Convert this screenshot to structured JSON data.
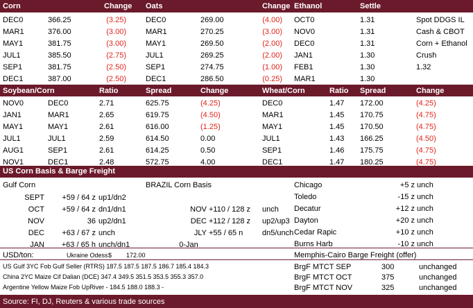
{
  "futures": {
    "headers": {
      "corn": "Corn",
      "change1": "Change",
      "oats": "Oats",
      "change2": "Change",
      "ethanol": "Ethanol",
      "settle": "Settle"
    },
    "rows": [
      {
        "cm": "DEC0",
        "cp": "366.25",
        "cc": "(3.25)",
        "cneg": true,
        "om": "DEC0",
        "op": "269.00",
        "oc": "(4.00)",
        "oneg": true,
        "em": "OCT0",
        "ep": "1.31",
        "x1": "Spot DDGS IL",
        "x2": ""
      },
      {
        "cm": "MAR1",
        "cp": "376.00",
        "cc": "(3.00)",
        "cneg": true,
        "om": "MAR1",
        "op": "270.25",
        "oc": "(3.00)",
        "oneg": true,
        "em": "NOV0",
        "ep": "1.31",
        "x1": "Cash & CBOT",
        "x2": ""
      },
      {
        "cm": "MAY1",
        "cp": "381.75",
        "cc": "(3.00)",
        "cneg": true,
        "om": "MAY1",
        "op": "269.50",
        "oc": "(2.00)",
        "oneg": true,
        "em": "DEC0",
        "ep": "1.31",
        "x1": "Corn + Ethanol",
        "x2": ""
      },
      {
        "cm": "JUL1",
        "cp": "385.50",
        "cc": "(2.75)",
        "cneg": true,
        "om": "JUL1",
        "op": "269.25",
        "oc": "(2.00)",
        "oneg": true,
        "em": "JAN1",
        "ep": "1.30",
        "x1": "Crush",
        "x2": ""
      },
      {
        "cm": "SEP1",
        "cp": "381.75",
        "cc": "(2.50)",
        "cneg": true,
        "om": "SEP1",
        "op": "274.75",
        "oc": "(1.00)",
        "oneg": true,
        "em": "FEB1",
        "ep": "1.30",
        "x1": "",
        "x2": "1.32"
      },
      {
        "cm": "DEC1",
        "cp": "387.00",
        "cc": "(2.50)",
        "cneg": true,
        "om": "DEC1",
        "op": "286.50",
        "oc": "(0.25)",
        "oneg": true,
        "em": "MAR1",
        "ep": "1.30",
        "x1": "",
        "x2": ""
      }
    ]
  },
  "ratios": {
    "headers": {
      "sc": "Soybean/Corn",
      "ratio1": "Ratio",
      "spread1": "Spread",
      "change1": "Change",
      "wc": "Wheat/Corn",
      "ratio2": "Ratio",
      "spread2": "Spread",
      "change2": "Change"
    },
    "rows": [
      {
        "a": "NOV0",
        "b": "DEC0",
        "r": "2.71",
        "s": "625.75",
        "c": "(4.25)",
        "cneg": true,
        "wa": "DEC0",
        "wr": "1.47",
        "ws": "172.00",
        "wch": "(4.25)"
      },
      {
        "a": "JAN1",
        "b": "MAR1",
        "r": "2.65",
        "s": "619.75",
        "c": "(4.50)",
        "cneg": true,
        "wa": "MAR1",
        "wr": "1.45",
        "ws": "170.75",
        "wch": "(4.75)"
      },
      {
        "a": "MAY1",
        "b": "MAY1",
        "r": "2.61",
        "s": "616.00",
        "c": "(1.25)",
        "cneg": true,
        "wa": "MAY1",
        "wr": "1.45",
        "ws": "170.50",
        "wch": "(4.75)"
      },
      {
        "a": "JUL1",
        "b": "JUL1",
        "r": "2.59",
        "s": "614.50",
        "c": "0.00",
        "cneg": false,
        "wa": "JUL1",
        "wr": "1.43",
        "ws": "166.25",
        "wch": "(4.50)"
      },
      {
        "a": "AUG1",
        "b": "SEP1",
        "r": "2.61",
        "s": "614.25",
        "c": "0.50",
        "cneg": false,
        "wa": "SEP1",
        "wr": "1.46",
        "ws": "175.75",
        "wch": "(4.75)"
      },
      {
        "a": "NOV1",
        "b": "DEC1",
        "r": "2.48",
        "s": "572.75",
        "c": "4.00",
        "cneg": false,
        "wa": "DEC1",
        "wr": "1.47",
        "ws": "180.25",
        "wch": "(4.75)"
      }
    ]
  },
  "basis": {
    "title": "US Corn Basis & Barge Freight",
    "gulf_label": "Gulf Corn",
    "brazil_label": "BRAZIL Corn Basis",
    "gulf": [
      {
        "m": "SEPT",
        "v": "+59 / 64 z",
        "s": "up1/dn2"
      },
      {
        "m": "OCT",
        "v": "+59 / 64 z",
        "s": "dn1/dn1"
      },
      {
        "m": "NOV",
        "v": "36",
        "s": "up2/dn1"
      },
      {
        "m": "DEC",
        "v": "+63 / 67 z",
        "s": "unch"
      },
      {
        "m": "JAN",
        "v": "+63 / 65 h",
        "s": "unch/dn1"
      }
    ],
    "brazil": [
      {
        "m": "",
        "v": "",
        "s": ""
      },
      {
        "m": "NOV",
        "v": "+110 / 128 z",
        "s": "unch"
      },
      {
        "m": "DEC",
        "v": "+112 / 128 z",
        "s": "up2/up3"
      },
      {
        "m": "JLY",
        "v": "+55 / 65 n",
        "s": "dn5/unch"
      },
      {
        "m": "0-Jan",
        "v": "",
        "s": ""
      }
    ],
    "locations": [
      {
        "n": "Chicago",
        "v": "+5 z",
        "s": "unch"
      },
      {
        "n": "Toledo",
        "v": "-15 z",
        "s": "unch"
      },
      {
        "n": "Decatur",
        "v": "+12 z",
        "s": "unch"
      },
      {
        "n": "Dayton",
        "v": "+20 z",
        "s": "unch"
      },
      {
        "n": "Cedar Rapic",
        "v": "+10 z",
        "s": "unch"
      },
      {
        "n": "Burns Harb",
        "v": "-10 z",
        "s": "unch"
      }
    ]
  },
  "ton": {
    "usd_label": "USD/ton:",
    "ukraine_label": "Ukraine Odess",
    "ukraine_val": "$",
    "ukraine_num": "172.00",
    "memphis": "Memphis-Cairo Barge Freight (offer)",
    "rows": [
      {
        "label": "US Gulf  3YC Fob Gulf Seller (RTRS) 187.5  187.5  187.5  186.7  185.4  184.3",
        "brg": "BrgF MTCT SEP",
        "val": "300",
        "st": "unchanged"
      },
      {
        "label": "China   2YC Maize Cif Dalian (DCE) 347.4  349.5  351.5  353.5  355.3  357.0",
        "brg": "BrgF MTCT OCT",
        "val": "375",
        "st": "unchanged"
      },
      {
        "label": "Argentine  Yellow Maize Fob UpRiver   -  184.5  188.0  188.3  -",
        "brg": "BrgF MTCT NOV",
        "val": "325",
        "st": "unchanged"
      }
    ]
  },
  "source": "Source: FI, DJ, Reuters & various trade sources",
  "colors": {
    "header": "#6b1a2b",
    "negative": "#e0241b"
  }
}
